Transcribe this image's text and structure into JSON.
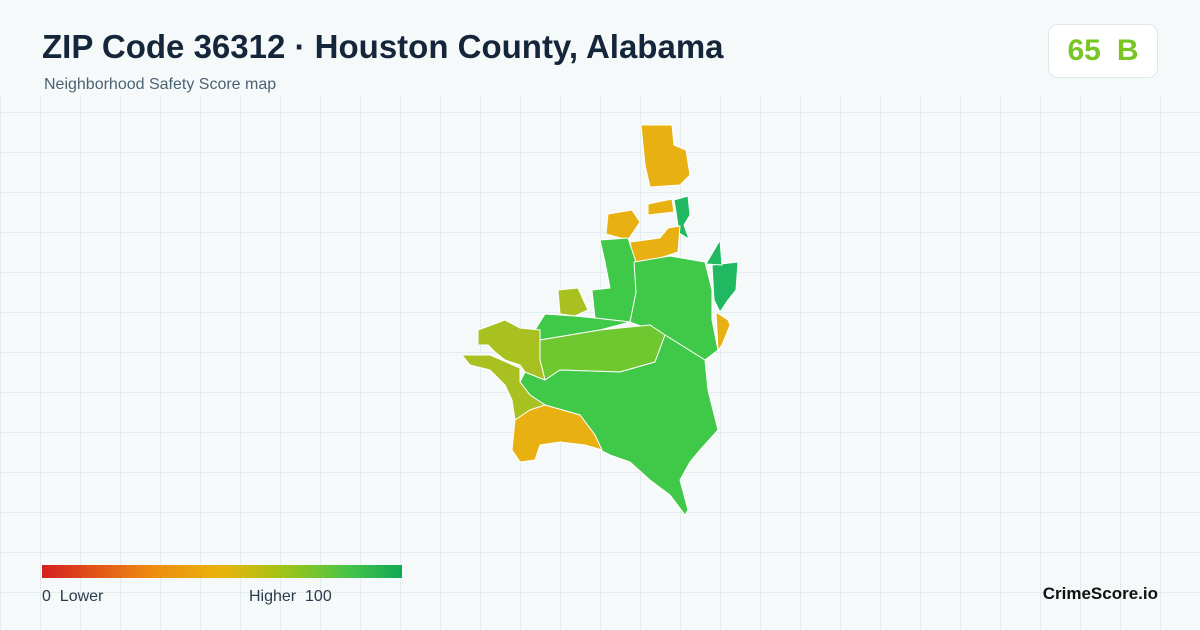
{
  "header": {
    "title": "ZIP Code 36312 · Houston County, Alabama",
    "subtitle": "Neighborhood Safety Score map"
  },
  "score": {
    "value": 65,
    "grade": "B"
  },
  "legend": {
    "min": 0,
    "min_label": "Lower",
    "max_label": "Higher",
    "max": 100
  },
  "brand": "CrimeScore.io"
}
